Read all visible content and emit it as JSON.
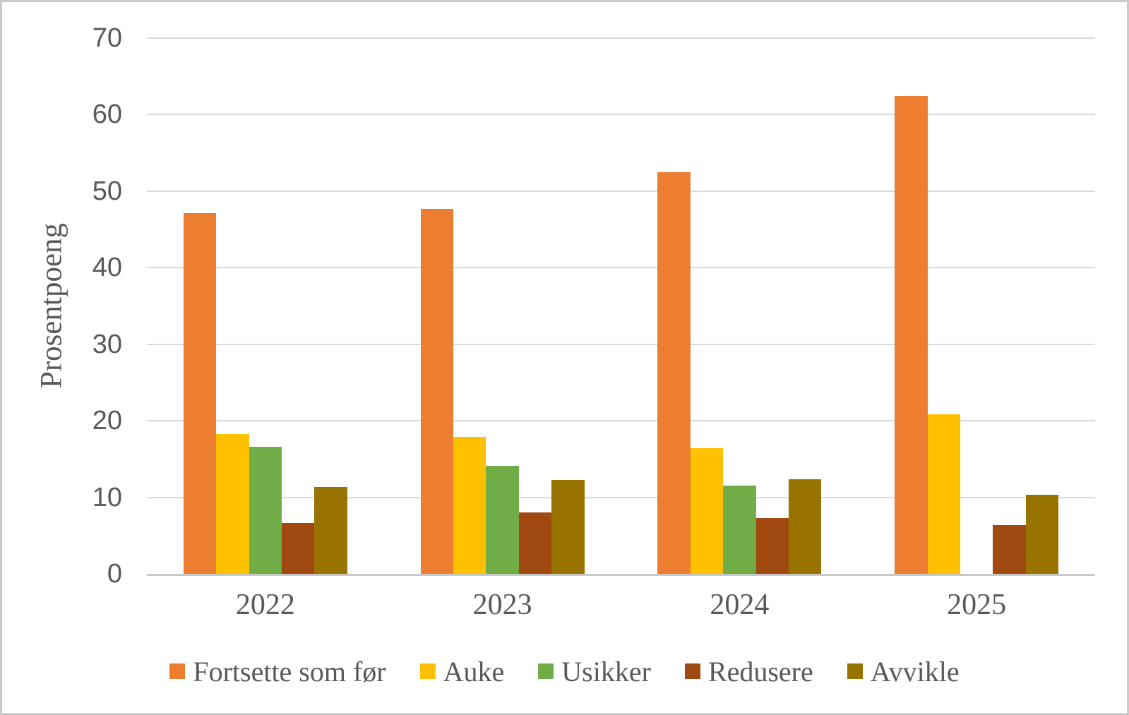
{
  "chart_data": {
    "type": "bar",
    "title": "",
    "xlabel": "",
    "ylabel": "Prosentpoeng",
    "ylim": [
      0,
      70
    ],
    "yticks": [
      0,
      10,
      20,
      30,
      40,
      50,
      60,
      70
    ],
    "categories": [
      "2022",
      "2023",
      "2024",
      "2025"
    ],
    "series": [
      {
        "name": "Fortsette som før",
        "color": "#ED7D31",
        "values": [
          47.1,
          47.7,
          52.5,
          62.4
        ]
      },
      {
        "name": "Auke",
        "color": "#FFC000",
        "values": [
          18.3,
          17.9,
          16.4,
          20.8
        ]
      },
      {
        "name": "Usikker",
        "color": "#70AD47",
        "values": [
          16.6,
          14.1,
          11.5,
          0
        ]
      },
      {
        "name": "Redusere",
        "color": "#A04A12",
        "values": [
          6.6,
          8.0,
          7.3,
          6.4
        ]
      },
      {
        "name": "Avvikle",
        "color": "#997300",
        "values": [
          11.3,
          12.3,
          12.4,
          10.3
        ]
      }
    ],
    "legend_position": "bottom",
    "grid": "horizontal",
    "grid_color": "#D9D9D9",
    "axis_line_color": "#C9C9C9",
    "text_color": "#595959"
  }
}
